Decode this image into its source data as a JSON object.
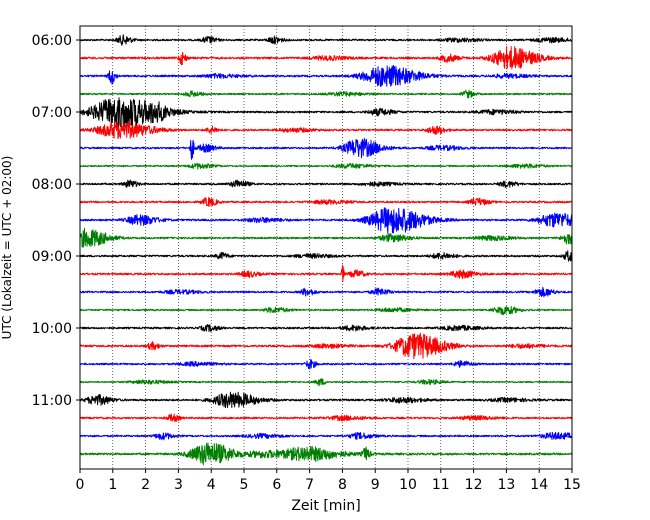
{
  "chart_data": {
    "type": "line",
    "title": "",
    "xlabel": "Zeit  [min]",
    "ylabel": "UTC (Lokalzeit = UTC + 02:00)",
    "xlim": [
      0,
      15
    ],
    "x_ticks": [
      0,
      1,
      2,
      3,
      4,
      5,
      6,
      7,
      8,
      9,
      10,
      11,
      12,
      13,
      14,
      15
    ],
    "y_tick_labels": [
      "06:00",
      "07:00",
      "08:00",
      "09:00",
      "10:00",
      "11:00"
    ],
    "trace_start": "06:00",
    "trace_minutes": 15,
    "grid": true,
    "colors": [
      "#000000",
      "#ff0000",
      "#0000ff",
      "#008000"
    ],
    "series": [
      {
        "start": "06:00",
        "color": "#000000",
        "noise": 0.24,
        "events": [
          {
            "t": 1.3,
            "amp": 1.3,
            "w": 0.12
          },
          {
            "t": 3.9,
            "amp": 0.9,
            "w": 0.12
          },
          {
            "t": 5.9,
            "amp": 1.0,
            "w": 0.12
          },
          {
            "t": 11.5,
            "amp": 0.5,
            "w": 0.3
          },
          {
            "t": 14.3,
            "amp": 0.6,
            "w": 0.3
          }
        ]
      },
      {
        "start": "06:15",
        "color": "#ff0000",
        "noise": 0.28,
        "events": [
          {
            "t": 3.1,
            "amp": 1.8,
            "w": 0.06
          },
          {
            "t": 11.2,
            "amp": 1.0,
            "w": 0.15
          },
          {
            "t": 13.1,
            "amp": 3.2,
            "w": 0.35
          },
          {
            "t": 7.5,
            "amp": 0.5,
            "w": 0.3
          }
        ]
      },
      {
        "start": "06:30",
        "color": "#0000ff",
        "noise": 0.26,
        "events": [
          {
            "t": 0.95,
            "amp": 2.2,
            "w": 0.06
          },
          {
            "t": 9.3,
            "amp": 3.0,
            "w": 0.45
          },
          {
            "t": 4.2,
            "amp": 0.5,
            "w": 0.3
          },
          {
            "t": 13.0,
            "amp": 0.5,
            "w": 0.3
          }
        ]
      },
      {
        "start": "06:45",
        "color": "#008000",
        "noise": 0.22,
        "events": [
          {
            "t": 3.4,
            "amp": 0.7,
            "w": 0.15
          },
          {
            "t": 11.8,
            "amp": 1.0,
            "w": 0.1
          },
          {
            "t": 8.0,
            "amp": 0.5,
            "w": 0.3
          }
        ]
      },
      {
        "start": "07:00",
        "color": "#000000",
        "noise": 0.25,
        "events": [
          {
            "t": 1.2,
            "amp": 4.5,
            "w": 0.55
          },
          {
            "t": 2.3,
            "amp": 1.2,
            "w": 0.15
          },
          {
            "t": 9.1,
            "amp": 0.9,
            "w": 0.2
          },
          {
            "t": 12.6,
            "amp": 0.6,
            "w": 0.3
          }
        ]
      },
      {
        "start": "07:15",
        "color": "#ff0000",
        "noise": 0.24,
        "events": [
          {
            "t": 1.2,
            "amp": 2.4,
            "w": 0.45
          },
          {
            "t": 4.0,
            "amp": 0.9,
            "w": 0.1
          },
          {
            "t": 10.8,
            "amp": 1.1,
            "w": 0.15
          },
          {
            "t": 6.5,
            "amp": 0.5,
            "w": 0.3
          }
        ]
      },
      {
        "start": "07:30",
        "color": "#0000ff",
        "noise": 0.24,
        "events": [
          {
            "t": 3.4,
            "amp": 3.6,
            "w": 0.03
          },
          {
            "t": 3.8,
            "amp": 1.0,
            "w": 0.15
          },
          {
            "t": 8.5,
            "amp": 2.7,
            "w": 0.3
          },
          {
            "t": 11.0,
            "amp": 0.6,
            "w": 0.3
          }
        ]
      },
      {
        "start": "07:45",
        "color": "#008000",
        "noise": 0.2,
        "events": [
          {
            "t": 3.6,
            "amp": 0.7,
            "w": 0.2
          },
          {
            "t": 8.2,
            "amp": 0.6,
            "w": 0.3
          },
          {
            "t": 13.5,
            "amp": 0.5,
            "w": 0.3
          }
        ]
      },
      {
        "start": "08:00",
        "color": "#000000",
        "noise": 0.24,
        "events": [
          {
            "t": 1.5,
            "amp": 1.0,
            "w": 0.12
          },
          {
            "t": 4.8,
            "amp": 1.0,
            "w": 0.15
          },
          {
            "t": 13.0,
            "amp": 0.8,
            "w": 0.15
          },
          {
            "t": 9.0,
            "amp": 0.5,
            "w": 0.3
          }
        ]
      },
      {
        "start": "08:15",
        "color": "#ff0000",
        "noise": 0.24,
        "events": [
          {
            "t": 3.9,
            "amp": 1.2,
            "w": 0.12
          },
          {
            "t": 12.1,
            "amp": 1.0,
            "w": 0.15
          },
          {
            "t": 7.5,
            "amp": 0.5,
            "w": 0.3
          }
        ]
      },
      {
        "start": "08:30",
        "color": "#0000ff",
        "noise": 0.26,
        "events": [
          {
            "t": 1.8,
            "amp": 1.4,
            "w": 0.25
          },
          {
            "t": 9.5,
            "amp": 3.8,
            "w": 0.45
          },
          {
            "t": 14.5,
            "amp": 2.0,
            "w": 0.35
          },
          {
            "t": 5.5,
            "amp": 0.6,
            "w": 0.3
          }
        ]
      },
      {
        "start": "08:45",
        "color": "#008000",
        "noise": 0.24,
        "events": [
          {
            "t": 0.2,
            "amp": 2.6,
            "w": 0.3
          },
          {
            "t": 9.5,
            "amp": 1.0,
            "w": 0.25
          },
          {
            "t": 14.9,
            "amp": 1.6,
            "w": 0.15
          },
          {
            "t": 12.5,
            "amp": 0.6,
            "w": 0.3
          }
        ]
      },
      {
        "start": "09:00",
        "color": "#000000",
        "noise": 0.25,
        "events": [
          {
            "t": 4.3,
            "amp": 0.9,
            "w": 0.1
          },
          {
            "t": 11.0,
            "amp": 0.8,
            "w": 0.2
          },
          {
            "t": 14.9,
            "amp": 1.5,
            "w": 0.1
          },
          {
            "t": 7.0,
            "amp": 0.5,
            "w": 0.3
          }
        ]
      },
      {
        "start": "09:15",
        "color": "#ff0000",
        "noise": 0.26,
        "events": [
          {
            "t": 8.0,
            "amp": 2.6,
            "w": 0.02
          },
          {
            "t": 8.4,
            "amp": 1.0,
            "w": 0.12
          },
          {
            "t": 11.6,
            "amp": 1.1,
            "w": 0.2
          },
          {
            "t": 5.1,
            "amp": 0.8,
            "w": 0.15
          }
        ]
      },
      {
        "start": "09:30",
        "color": "#0000ff",
        "noise": 0.24,
        "events": [
          {
            "t": 6.9,
            "amp": 1.0,
            "w": 0.12
          },
          {
            "t": 9.1,
            "amp": 0.9,
            "w": 0.15
          },
          {
            "t": 14.1,
            "amp": 1.2,
            "w": 0.15
          },
          {
            "t": 3.0,
            "amp": 0.5,
            "w": 0.3
          }
        ]
      },
      {
        "start": "09:45",
        "color": "#008000",
        "noise": 0.22,
        "events": [
          {
            "t": 5.9,
            "amp": 0.7,
            "w": 0.2
          },
          {
            "t": 12.9,
            "amp": 1.2,
            "w": 0.2
          },
          {
            "t": 9.5,
            "amp": 0.5,
            "w": 0.3
          }
        ]
      },
      {
        "start": "10:00",
        "color": "#000000",
        "noise": 0.25,
        "events": [
          {
            "t": 3.9,
            "amp": 0.8,
            "w": 0.15
          },
          {
            "t": 8.3,
            "amp": 0.7,
            "w": 0.2
          },
          {
            "t": 11.5,
            "amp": 0.6,
            "w": 0.3
          }
        ]
      },
      {
        "start": "10:15",
        "color": "#ff0000",
        "noise": 0.26,
        "events": [
          {
            "t": 2.2,
            "amp": 1.0,
            "w": 0.1
          },
          {
            "t": 10.2,
            "amp": 3.6,
            "w": 0.4
          },
          {
            "t": 7.5,
            "amp": 0.5,
            "w": 0.3
          },
          {
            "t": 13.5,
            "amp": 0.5,
            "w": 0.3
          }
        ]
      },
      {
        "start": "10:30",
        "color": "#0000ff",
        "noise": 0.24,
        "events": [
          {
            "t": 7.0,
            "amp": 1.3,
            "w": 0.08
          },
          {
            "t": 11.6,
            "amp": 0.8,
            "w": 0.15
          },
          {
            "t": 3.5,
            "amp": 0.5,
            "w": 0.3
          }
        ]
      },
      {
        "start": "10:45",
        "color": "#008000",
        "noise": 0.2,
        "events": [
          {
            "t": 7.3,
            "amp": 1.0,
            "w": 0.08
          },
          {
            "t": 10.6,
            "amp": 0.6,
            "w": 0.2
          },
          {
            "t": 2.0,
            "amp": 0.5,
            "w": 0.3
          }
        ]
      },
      {
        "start": "11:00",
        "color": "#000000",
        "noise": 0.26,
        "events": [
          {
            "t": 0.5,
            "amp": 1.4,
            "w": 0.2
          },
          {
            "t": 4.6,
            "amp": 2.2,
            "w": 0.35
          },
          {
            "t": 9.8,
            "amp": 0.7,
            "w": 0.3
          },
          {
            "t": 13.0,
            "amp": 0.5,
            "w": 0.3
          }
        ]
      },
      {
        "start": "11:15",
        "color": "#ff0000",
        "noise": 0.24,
        "events": [
          {
            "t": 2.8,
            "amp": 1.0,
            "w": 0.1
          },
          {
            "t": 8.0,
            "amp": 0.6,
            "w": 0.3
          },
          {
            "t": 12.0,
            "amp": 0.5,
            "w": 0.3
          }
        ]
      },
      {
        "start": "11:30",
        "color": "#0000ff",
        "noise": 0.24,
        "events": [
          {
            "t": 2.5,
            "amp": 0.9,
            "w": 0.15
          },
          {
            "t": 8.5,
            "amp": 0.8,
            "w": 0.2
          },
          {
            "t": 14.5,
            "amp": 0.9,
            "w": 0.3
          },
          {
            "t": 5.5,
            "amp": 0.5,
            "w": 0.3
          }
        ]
      },
      {
        "start": "11:45",
        "color": "#008000",
        "noise": 0.28,
        "events": [
          {
            "t": 3.9,
            "amp": 3.2,
            "w": 0.35
          },
          {
            "t": 6.9,
            "amp": 2.0,
            "w": 0.45
          },
          {
            "t": 8.7,
            "amp": 1.8,
            "w": 0.06
          },
          {
            "t": 5.6,
            "amp": 0.9,
            "w": 0.3
          }
        ]
      }
    ]
  }
}
